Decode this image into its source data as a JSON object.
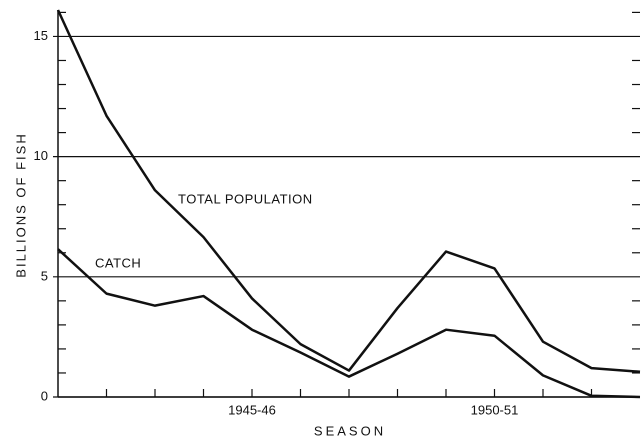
{
  "chart_data": {
    "type": "line",
    "x_label": "SEASON",
    "y_label": "BILLIONS OF FISH",
    "x": [
      1941,
      1942,
      1943,
      1944,
      1945,
      1946,
      1947,
      1948,
      1949,
      1950,
      1951,
      1952,
      1953
    ],
    "series": [
      {
        "name": "TOTAL POPULATION",
        "color": "#111111",
        "values": [
          16.1,
          11.7,
          8.6,
          6.65,
          4.1,
          2.2,
          1.1,
          3.7,
          6.05,
          5.35,
          2.3,
          1.2,
          1.05
        ]
      },
      {
        "name": "CATCH",
        "color": "#111111",
        "values": [
          6.15,
          4.3,
          3.8,
          4.2,
          2.8,
          1.85,
          0.85,
          1.8,
          2.8,
          2.55,
          0.9,
          0.05,
          0
        ]
      }
    ],
    "xlim": [
      1941,
      1953
    ],
    "xticks": [
      {
        "value": 1945,
        "label": "1945-46"
      },
      {
        "value": 1950,
        "label": "1950-51"
      }
    ],
    "xminorticks": [
      1942,
      1943,
      1944,
      1946,
      1947,
      1948,
      1949,
      1951,
      1952
    ],
    "ylim": [
      0,
      16.1
    ],
    "yticks": [
      0,
      5,
      10,
      15
    ],
    "yminorticks": [
      1,
      2,
      3,
      4,
      6,
      7,
      8,
      9,
      11,
      12,
      13,
      14,
      16
    ],
    "grid": true
  }
}
